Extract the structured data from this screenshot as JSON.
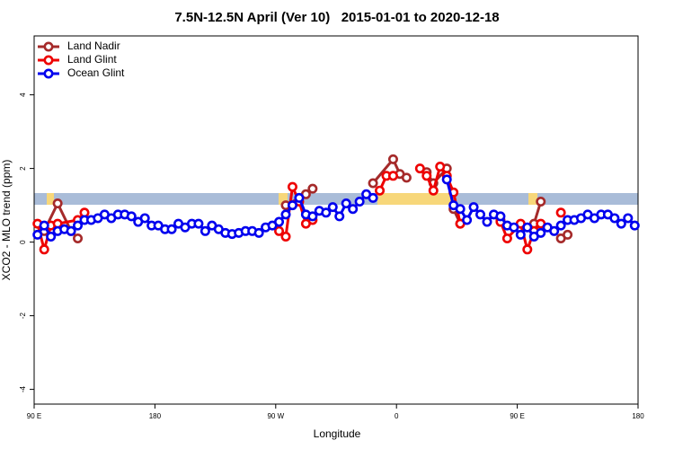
{
  "chart_data": {
    "type": "line",
    "title": "7.5N-12.5N April (Ver 10)   2015-01-01 to 2020-12-18",
    "x_label": "Longitude",
    "y_label": "XCO2 - MLO trend (ppm)",
    "xlim": [
      90,
      540
    ],
    "ylim": [
      -4.4,
      5.6
    ],
    "xticks": [
      {
        "value": 90,
        "label": "90 E"
      },
      {
        "value": 180,
        "label": "180"
      },
      {
        "value": 270,
        "label": "90 W"
      },
      {
        "value": 360,
        "label": "0"
      },
      {
        "value": 450,
        "label": "90 E"
      },
      {
        "value": 540,
        "label": "180"
      }
    ],
    "yticks": [
      4,
      2,
      0,
      -2,
      -4
    ],
    "legend": "top-left",
    "series": [
      {
        "name": "Land Nadir",
        "color": "#a52a2a",
        "x": [
          97.5,
          107.5,
          117.5,
          122.5,
          200,
          277.5,
          292.5,
          297.5,
          320,
          342.5,
          357.5,
          362.5,
          367.5,
          372,
          382.5,
          387.5,
          397.5,
          402.5,
          407.5,
          420,
          437.5,
          450,
          462.5,
          467.5,
          475,
          482.5,
          487.5
        ],
        "values": [
          0.3,
          1.05,
          0.3,
          0.1,
          null,
          1.0,
          1.3,
          1.45,
          null,
          1.6,
          2.25,
          1.85,
          1.75,
          null,
          1.9,
          1.6,
          2.0,
          0.9,
          0.5,
          null,
          0.6,
          null,
          0.5,
          1.1,
          null,
          0.1,
          0.2
        ]
      },
      {
        "name": "Land Glint",
        "color": "#ee0000",
        "x": [
          92.5,
          97.5,
          102.5,
          107.5,
          122.5,
          127.5,
          200,
          272.5,
          277.5,
          282.5,
          287.5,
          292.5,
          297.5,
          320,
          347.5,
          352.5,
          357.5,
          370,
          377.5,
          382.5,
          387.5,
          392.5,
          397.5,
          402.5,
          407.5,
          420,
          437.5,
          442.5,
          452.5,
          457.5,
          462.5,
          467.5,
          475,
          482.5
        ],
        "values": [
          0.5,
          -0.2,
          0.45,
          0.5,
          0.6,
          0.8,
          null,
          0.3,
          0.15,
          1.5,
          1.1,
          0.5,
          0.6,
          null,
          1.4,
          1.8,
          1.8,
          null,
          2.0,
          1.8,
          1.4,
          2.05,
          1.8,
          1.35,
          0.5,
          null,
          0.55,
          0.1,
          0.5,
          -0.2,
          0.3,
          0.5,
          null,
          0.8
        ]
      },
      {
        "name": "Ocean Glint",
        "color": "#0000ee",
        "x": [
          92.5,
          97.5,
          102.5,
          107.5,
          112.5,
          117.5,
          122.5,
          127.5,
          132.5,
          137.5,
          142.5,
          147.5,
          152.5,
          157.5,
          162.5,
          167.5,
          172.5,
          177.5,
          182.5,
          187.5,
          192.5,
          197.5,
          202.5,
          207.5,
          212.5,
          217.5,
          222.5,
          227.5,
          232.5,
          237.5,
          242.5,
          247.5,
          252.5,
          257.5,
          262.5,
          267.5,
          272.5,
          277.5,
          282.5,
          287.5,
          292.5,
          297.5,
          302.5,
          307.5,
          312.5,
          317.5,
          322.5,
          327.5,
          332.5,
          337.5,
          342.5,
          370,
          397.5,
          402.5,
          407.5,
          412.5,
          417.5,
          422.5,
          427.5,
          432.5,
          437.5,
          442.5,
          447.5,
          452.5,
          457.5,
          462.5,
          467.5,
          472.5,
          477.5,
          482.5,
          487.5,
          492.5,
          497.5,
          502.5,
          507.5,
          512.5,
          517.5,
          522.5,
          527.5,
          532.5,
          537.5
        ],
        "values": [
          0.2,
          0.45,
          0.15,
          0.3,
          0.35,
          0.3,
          0.45,
          0.6,
          0.6,
          0.65,
          0.75,
          0.65,
          0.75,
          0.75,
          0.7,
          0.55,
          0.65,
          0.45,
          0.45,
          0.35,
          0.35,
          0.5,
          0.4,
          0.5,
          0.5,
          0.3,
          0.45,
          0.35,
          0.25,
          0.22,
          0.25,
          0.3,
          0.3,
          0.25,
          0.4,
          0.45,
          0.55,
          0.75,
          1.0,
          1.2,
          0.75,
          0.7,
          0.85,
          0.8,
          0.95,
          0.7,
          1.05,
          0.9,
          1.1,
          1.3,
          1.2,
          null,
          1.7,
          1.0,
          0.9,
          0.6,
          0.95,
          0.75,
          0.55,
          0.75,
          0.7,
          0.45,
          0.4,
          0.2,
          0.4,
          0.15,
          0.25,
          0.4,
          0.3,
          0.45,
          0.6,
          0.6,
          0.65,
          0.75,
          0.65,
          0.75,
          0.75,
          0.65,
          0.5,
          0.65,
          0.45
        ]
      }
    ]
  }
}
